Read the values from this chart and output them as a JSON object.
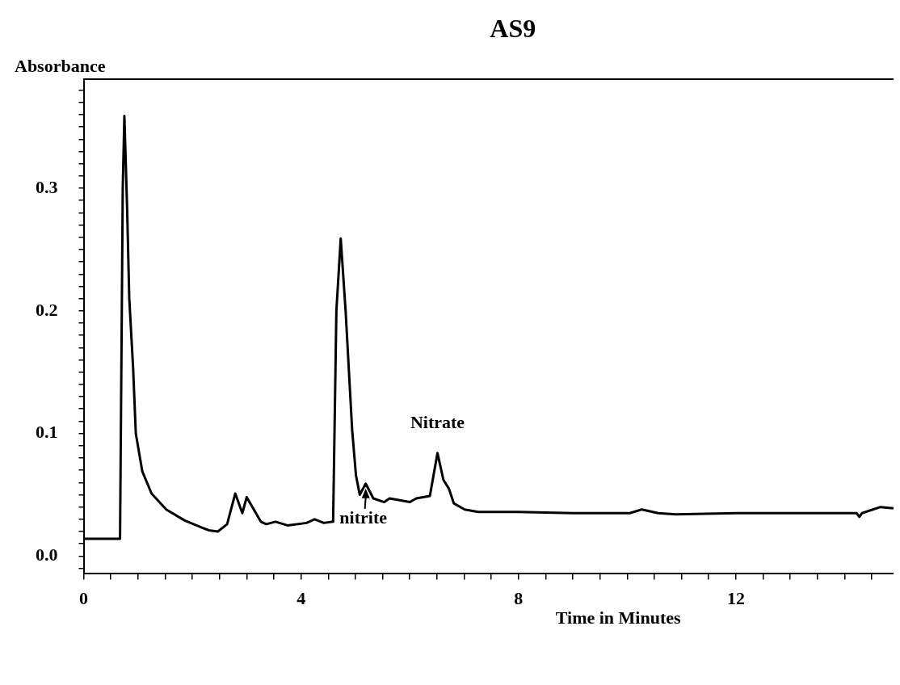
{
  "chart_data": {
    "type": "line",
    "title": "AS9",
    "xlabel": "Time in Minutes",
    "ylabel": "Absorbance",
    "xlim": [
      0,
      14.9
    ],
    "ylim": [
      -0.014,
      0.389
    ],
    "xticks": [
      0,
      {
        "value": 0.5,
        "label": null
      },
      {
        "value": 1,
        "label": null
      },
      {
        "value": 1.5,
        "label": null
      },
      {
        "value": 2,
        "label": null
      },
      {
        "value": 2.5,
        "label": null
      },
      {
        "value": 3,
        "label": null
      },
      {
        "value": 3.5,
        "label": null
      },
      4,
      {
        "value": 4.5,
        "label": null
      },
      {
        "value": 5,
        "label": null
      },
      {
        "value": 5.5,
        "label": null
      },
      {
        "value": 6,
        "label": null
      },
      {
        "value": 6.5,
        "label": null
      },
      {
        "value": 7,
        "label": null
      },
      {
        "value": 7.5,
        "label": null
      },
      8,
      {
        "value": 8.5,
        "label": null
      },
      {
        "value": 9,
        "label": null
      },
      {
        "value": 9.5,
        "label": null
      },
      {
        "value": 10,
        "label": null
      },
      {
        "value": 10.5,
        "label": null
      },
      {
        "value": 11,
        "label": null
      },
      {
        "value": 11.5,
        "label": null
      },
      12,
      {
        "value": 12.5,
        "label": null
      },
      {
        "value": 13,
        "label": null
      },
      {
        "value": 13.5,
        "label": null
      },
      {
        "value": 14,
        "label": null
      },
      {
        "value": 14.5,
        "label": null
      }
    ],
    "yticks": [
      {
        "value": -0.01,
        "label": null
      },
      {
        "value": 0,
        "label": "0.0"
      },
      {
        "value": 0.01,
        "label": null
      },
      {
        "value": 0.02,
        "label": null
      },
      {
        "value": 0.03,
        "label": null
      },
      {
        "value": 0.04,
        "label": null
      },
      {
        "value": 0.05,
        "label": null
      },
      {
        "value": 0.06,
        "label": null
      },
      {
        "value": 0.07,
        "label": null
      },
      {
        "value": 0.08,
        "label": null
      },
      {
        "value": 0.09,
        "label": null
      },
      0.1,
      {
        "value": 0.11,
        "label": null
      },
      {
        "value": 0.12,
        "label": null
      },
      {
        "value": 0.13,
        "label": null
      },
      {
        "value": 0.14,
        "label": null
      },
      {
        "value": 0.15,
        "label": null
      },
      {
        "value": 0.16,
        "label": null
      },
      {
        "value": 0.17,
        "label": null
      },
      {
        "value": 0.18,
        "label": null
      },
      {
        "value": 0.19,
        "label": null
      },
      0.2,
      {
        "value": 0.21,
        "label": null
      },
      {
        "value": 0.22,
        "label": null
      },
      {
        "value": 0.23,
        "label": null
      },
      {
        "value": 0.24,
        "label": null
      },
      {
        "value": 0.25,
        "label": null
      },
      {
        "value": 0.26,
        "label": null
      },
      {
        "value": 0.27,
        "label": null
      },
      {
        "value": 0.28,
        "label": null
      },
      {
        "value": 0.29,
        "label": null
      },
      0.3,
      {
        "value": 0.31,
        "label": null
      },
      {
        "value": 0.32,
        "label": null
      },
      {
        "value": 0.33,
        "label": null
      },
      {
        "value": 0.34,
        "label": null
      },
      {
        "value": 0.35,
        "label": null
      },
      {
        "value": 0.36,
        "label": null
      },
      {
        "value": 0.37,
        "label": null
      },
      {
        "value": 0.38,
        "label": null
      }
    ],
    "grid": false,
    "legend": false,
    "marker": "none",
    "line_style": "solid",
    "annotations": [
      {
        "text": "Nitrate",
        "x": 6.51,
        "y": 0.084
      },
      {
        "text": "nitrite",
        "x": 5.19,
        "y": 0.059
      }
    ],
    "series": [
      {
        "color": "#000000",
        "x": [
          0,
          0.67,
          0.72,
          0.75,
          0.8,
          0.84,
          0.91,
          0.96,
          1.08,
          1.25,
          1.52,
          1.86,
          2.3,
          2.47,
          2.64,
          2.79,
          2.92,
          3.0,
          3.26,
          3.36,
          3.53,
          3.75,
          4.1,
          4.25,
          4.42,
          4.59,
          4.65,
          4.73,
          4.82,
          4.94,
          5.01,
          5.08,
          5.19,
          5.33,
          5.53,
          5.63,
          6.0,
          6.12,
          6.37,
          6.51,
          6.62,
          6.72,
          6.81,
          7.01,
          7.26,
          8.0,
          9.0,
          10.05,
          10.27,
          10.57,
          10.9,
          12.0,
          13.0,
          14.22,
          14.27,
          14.32,
          14.66,
          14.9
        ],
        "values": [
          0.014,
          0.014,
          0.3,
          0.359,
          0.284,
          0.21,
          0.154,
          0.1,
          0.069,
          0.051,
          0.038,
          0.029,
          0.021,
          0.02,
          0.026,
          0.051,
          0.035,
          0.048,
          0.028,
          0.026,
          0.028,
          0.025,
          0.027,
          0.03,
          0.027,
          0.028,
          0.2,
          0.259,
          0.2,
          0.103,
          0.066,
          0.05,
          0.059,
          0.047,
          0.044,
          0.047,
          0.044,
          0.047,
          0.049,
          0.084,
          0.062,
          0.055,
          0.043,
          0.038,
          0.036,
          0.036,
          0.035,
          0.035,
          0.038,
          0.035,
          0.034,
          0.035,
          0.035,
          0.035,
          0.032,
          0.035,
          0.04,
          0.039
        ]
      }
    ]
  }
}
